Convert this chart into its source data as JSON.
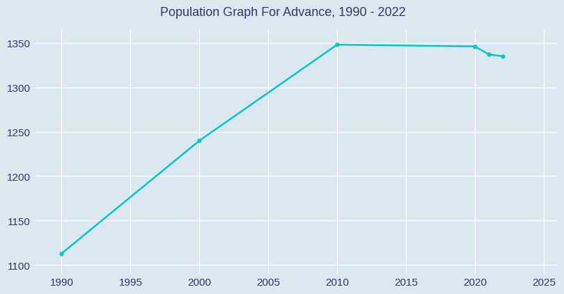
{
  "years": [
    1990,
    2000,
    2010,
    2020,
    2021,
    2022
  ],
  "population": [
    1113,
    1240,
    1348,
    1346,
    1337,
    1335
  ],
  "line_color": "#00C8C8",
  "marker": "o",
  "marker_size": 3.5,
  "line_width": 1.8,
  "bg_color": "#dce8f0",
  "plot_bg_color": "#dce8f0",
  "grid_color": "#ffffff",
  "tick_color": "#2b3a6b",
  "xlim": [
    1988,
    2026
  ],
  "ylim": [
    1090,
    1365
  ],
  "xticks": [
    1990,
    1995,
    2000,
    2005,
    2010,
    2015,
    2020,
    2025
  ],
  "yticks": [
    1100,
    1150,
    1200,
    1250,
    1300,
    1350
  ],
  "title": "Population Graph For Advance, 1990 - 2022",
  "title_color": "#2b3a6b",
  "title_fontsize": 13
}
